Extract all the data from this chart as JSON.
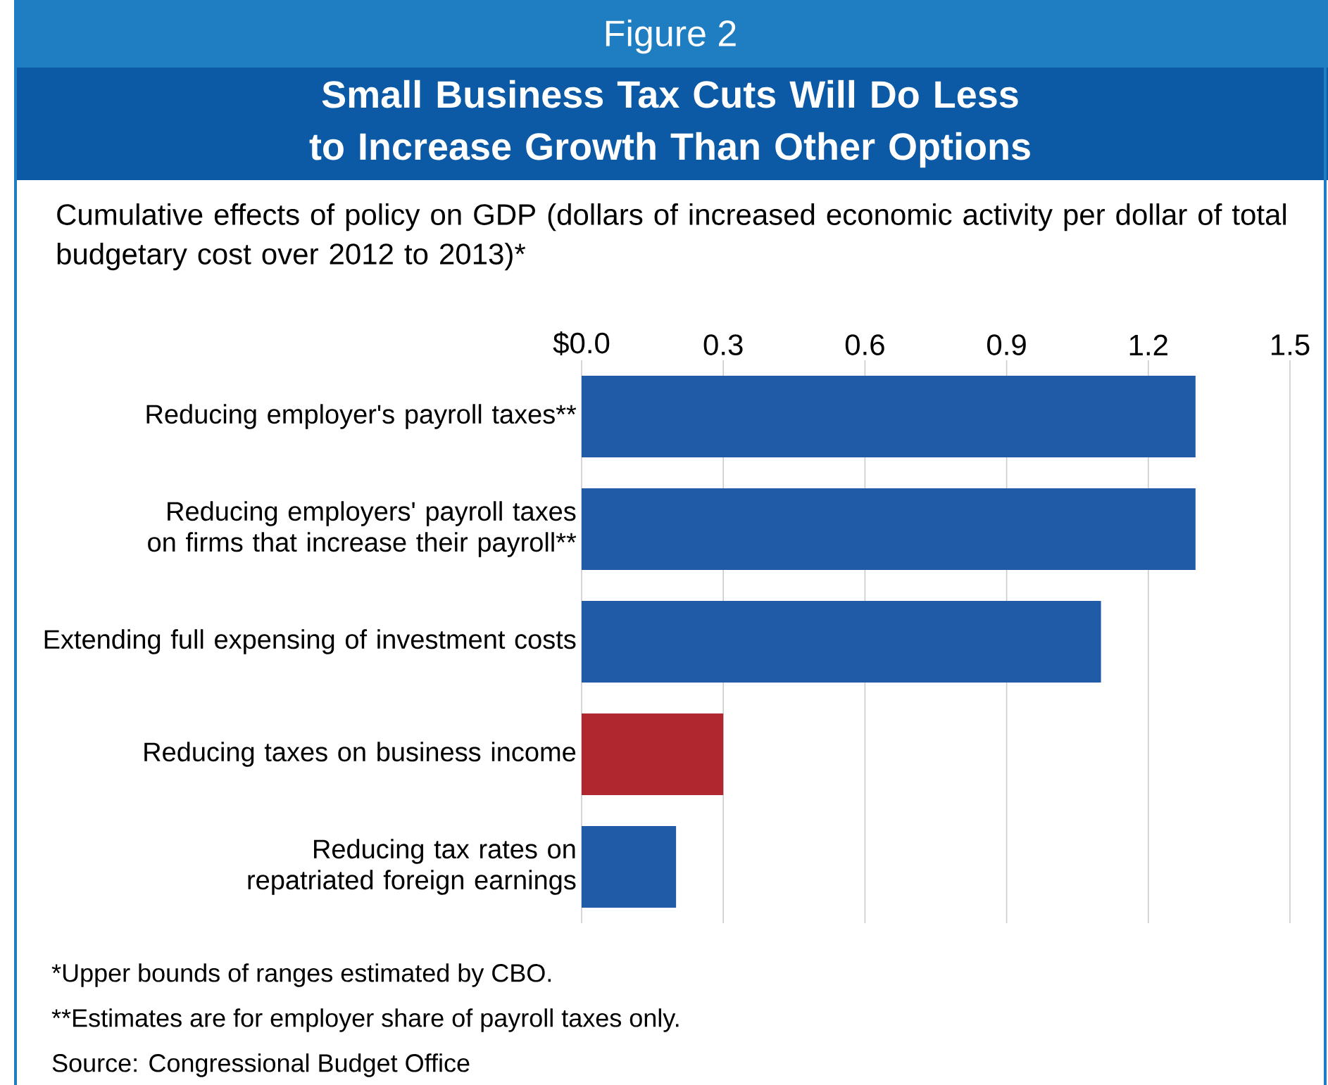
{
  "chart_data": {
    "type": "bar",
    "orientation": "horizontal",
    "title": "Small Business Tax Cuts Will Do Less to Increase Growth Than Other Options",
    "subtitle": "Cumulative effects of policy on GDP  (dollars of increased economic activity per dollar of total budgetary cost over 2012 to 2013)*",
    "categories": [
      "Reducing employer's payroll taxes**",
      "Reducing employers' payroll taxes on firms that increase their payroll**",
      "Extending full expensing of investment costs",
      "Reducing taxes on business income",
      "Reducing tax rates on repatriated foreign earnings"
    ],
    "values": [
      1.3,
      1.3,
      1.1,
      0.3,
      0.2
    ],
    "colors": [
      "#1f5ba6",
      "#1f5ba6",
      "#1f5ba6",
      "#b0272f",
      "#1f5ba6"
    ],
    "xlim": [
      0,
      1.5
    ],
    "xticks": [
      {
        "value": 0,
        "label": "$0.0"
      },
      0.3,
      0.6,
      0.9,
      1.2,
      1.5
    ],
    "grid": "x",
    "annotations": [
      "Figure 2",
      "*Upper bounds of ranges estimated by CBO.",
      "**Estimates are for employer share of payroll taxes only.",
      "Source: Congressional Budget Office"
    ]
  }
}
